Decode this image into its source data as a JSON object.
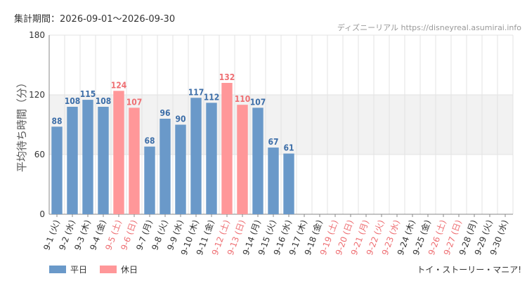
{
  "header": {
    "period_label": "集計期間：2026-09-01〜2026-09-30",
    "site_label": "ディズニーリアル https://disneyreal.asumirai.info"
  },
  "footer": {
    "attraction_name": "トイ・ストーリー・マニア!"
  },
  "colors": {
    "weekday": "#6a99c9",
    "holiday": "#ff9799",
    "weekday_label": "#3d6ea8",
    "holiday_label": "#ee6f73",
    "band": "#f2f2f2",
    "grid": "#e3e3e3"
  },
  "chart_data": {
    "type": "bar",
    "title": "",
    "xlabel": "",
    "ylabel": "平均待ち時間（分）",
    "ylim": [
      0,
      180
    ],
    "yticks": [
      0,
      60,
      120,
      180
    ],
    "band": [
      60,
      120
    ],
    "grid": true,
    "legend_position": "bottom-left",
    "legend": [
      {
        "name": "平日",
        "color": "#6a99c9"
      },
      {
        "name": "休日",
        "color": "#ff9799"
      }
    ],
    "categories": [
      "9-1 (火)",
      "9-2 (水)",
      "9-3 (木)",
      "9-4 (金)",
      "9-5 (土)",
      "9-6 (日)",
      "9-7 (月)",
      "9-8 (火)",
      "9-9 (水)",
      "9-10 (木)",
      "9-11 (金)",
      "9-12 (土)",
      "9-13 (日)",
      "9-14 (月)",
      "9-15 (火)",
      "9-16 (水)",
      "9-17 (木)",
      "9-18 (金)",
      "9-19 (土)",
      "9-20 (日)",
      "9-21 (月)",
      "9-22 (火)",
      "9-23 (水)",
      "9-24 (木)",
      "9-25 (金)",
      "9-26 (土)",
      "9-27 (日)",
      "9-28 (月)",
      "9-29 (火)",
      "9-30 (水)"
    ],
    "values": [
      88,
      108,
      115,
      108,
      124,
      107,
      68,
      96,
      90,
      117,
      112,
      132,
      110,
      107,
      67,
      61,
      null,
      null,
      null,
      null,
      null,
      null,
      null,
      null,
      null,
      null,
      null,
      null,
      null,
      null
    ],
    "holiday": [
      false,
      false,
      false,
      false,
      true,
      true,
      false,
      false,
      false,
      false,
      false,
      true,
      true,
      false,
      false,
      false,
      false,
      false,
      true,
      true,
      true,
      true,
      true,
      false,
      false,
      true,
      true,
      false,
      false,
      false
    ]
  }
}
